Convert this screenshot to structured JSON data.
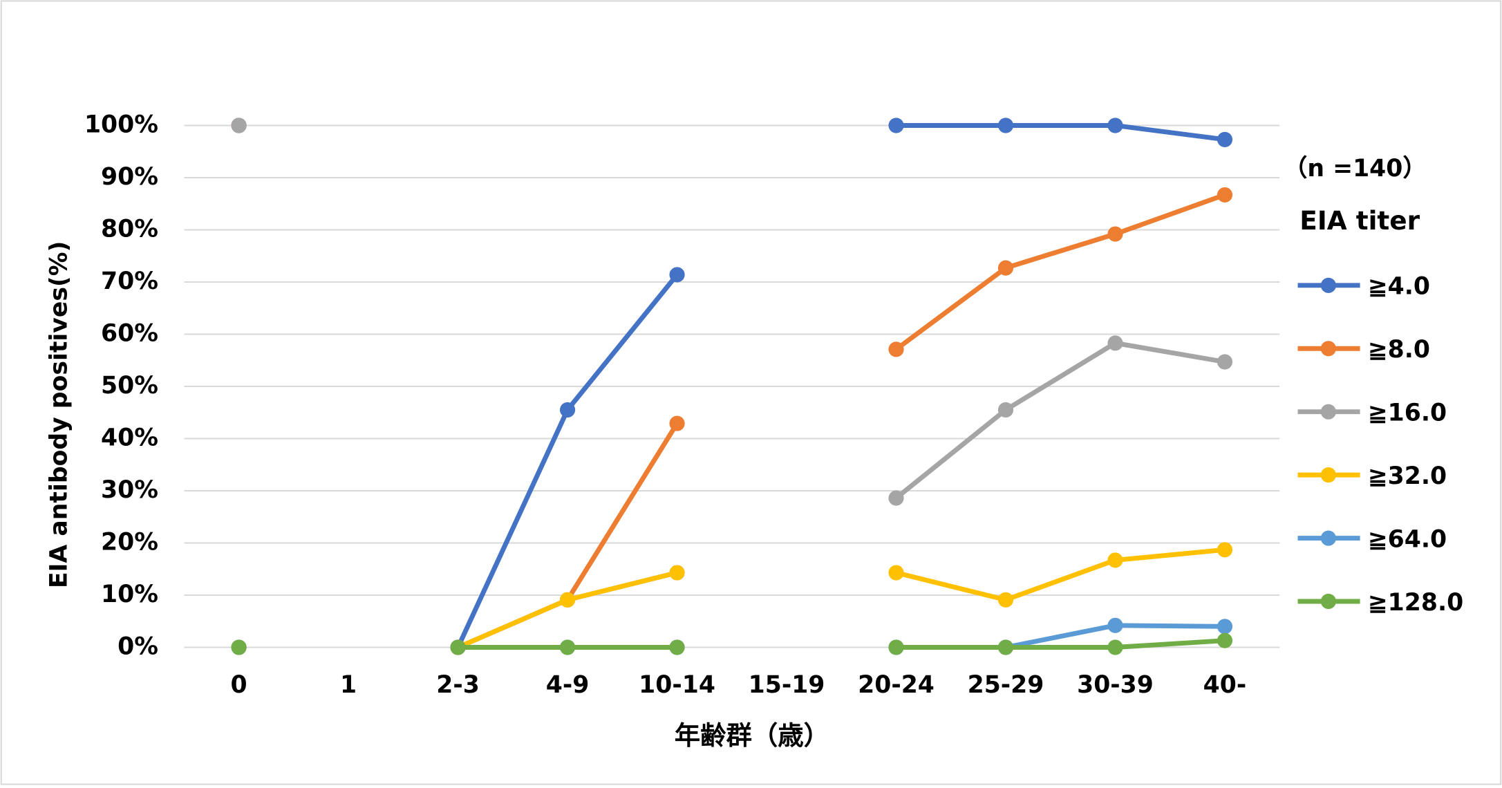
{
  "chart_data": {
    "type": "line",
    "y_label": "EIA antibody positives(%)",
    "x_label": "年齢群（歳）",
    "annotation": "（n =140）",
    "legend_title": "EIA titer",
    "legend_position": "right",
    "grid": true,
    "categories": [
      "0",
      "1",
      "2-3",
      "4-9",
      "10-14",
      "15-19",
      "20-24",
      "25-29",
      "30-39",
      "40-"
    ],
    "ylim": [
      0,
      100
    ],
    "yticks": [
      {
        "value": 0,
        "label": "0%"
      },
      {
        "value": 10,
        "label": "10%"
      },
      {
        "value": 20,
        "label": "20%"
      },
      {
        "value": 30,
        "label": "30%"
      },
      {
        "value": 40,
        "label": "40%"
      },
      {
        "value": 50,
        "label": "50%"
      },
      {
        "value": 60,
        "label": "60%"
      },
      {
        "value": 70,
        "label": "70%"
      },
      {
        "value": 80,
        "label": "80%"
      },
      {
        "value": 90,
        "label": "90%"
      },
      {
        "value": 100,
        "label": "100%"
      }
    ],
    "series": [
      {
        "name": "≧4.0",
        "color": "#4472c4",
        "values": [
          100,
          null,
          0,
          45.5,
          71.4,
          null,
          100,
          100,
          100,
          97.3
        ]
      },
      {
        "name": "≧8.0",
        "color": "#ed7d31",
        "values": [
          100,
          null,
          0,
          9.1,
          42.9,
          null,
          57.1,
          72.7,
          79.2,
          86.7
        ]
      },
      {
        "name": "≧16.0",
        "color": "#a5a5a5",
        "values": [
          100,
          null,
          0,
          9.1,
          14.3,
          null,
          28.6,
          45.5,
          58.3,
          54.7
        ]
      },
      {
        "name": "≧32.0",
        "color": "#ffc000",
        "values": [
          0,
          null,
          0,
          9.1,
          14.3,
          null,
          14.3,
          9.1,
          16.7,
          18.7
        ]
      },
      {
        "name": "≧64.0",
        "color": "#5b9bd5",
        "values": [
          0,
          null,
          0,
          0,
          0,
          null,
          0,
          0,
          4.2,
          4.0
        ]
      },
      {
        "name": "≧128.0",
        "color": "#70ad47",
        "values": [
          0,
          null,
          0,
          0,
          0,
          null,
          0,
          0,
          0,
          1.3
        ]
      }
    ]
  }
}
